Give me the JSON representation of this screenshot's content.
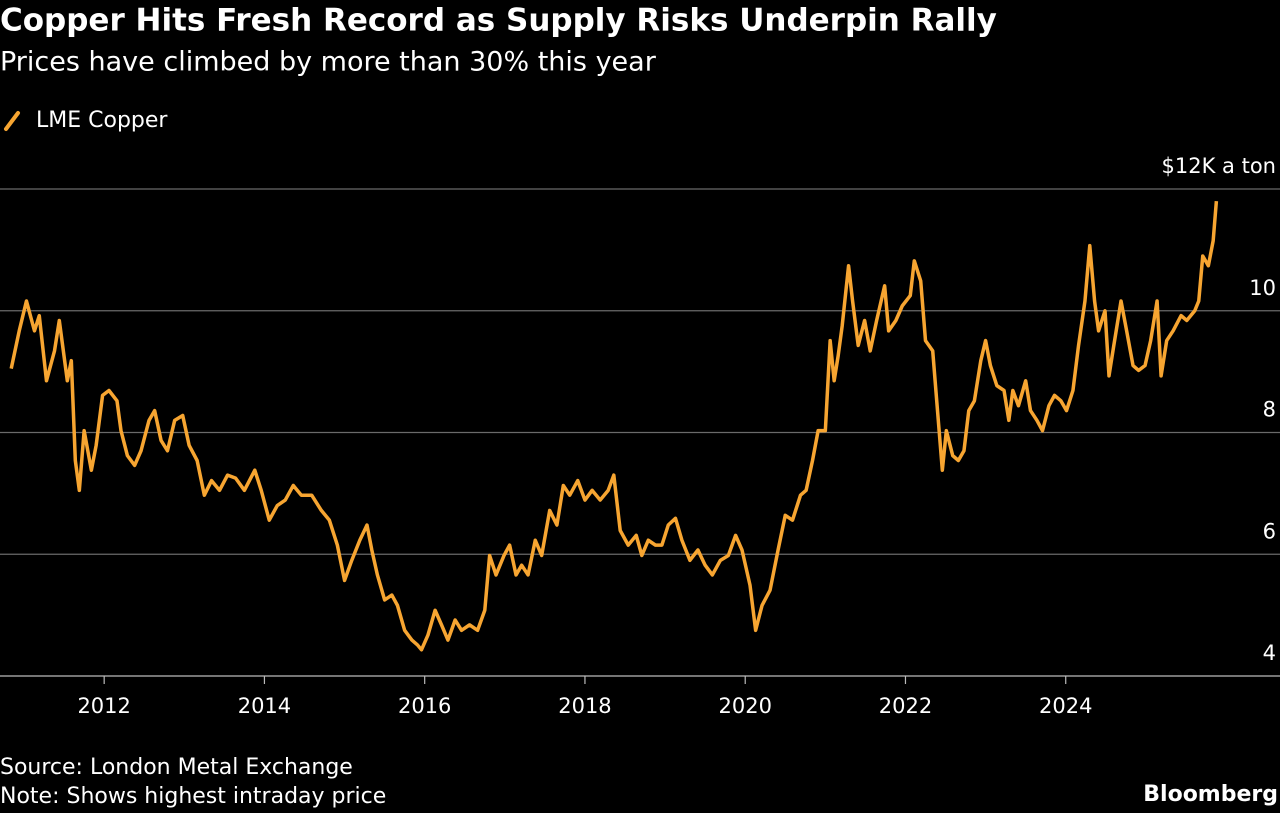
{
  "chart_data": {
    "type": "line",
    "title": "Copper Hits Fresh Record as Supply Risks Underpin Rally",
    "subtitle": "Prices have climbed by more than 30% this year",
    "source": "Source: London Metal Exchange",
    "note": "Note: Shows highest intraday price",
    "credit": "Bloomberg",
    "xlim": [
      2010.7,
      2026.05
    ],
    "xticks": [
      2012,
      2014,
      2016,
      2018,
      2020,
      2022,
      2024
    ],
    "ylim": [
      4,
      12
    ],
    "yticks": [
      4,
      6,
      8,
      10,
      {
        "value": 12,
        "label": "$12K a ton"
      }
    ],
    "grid": true,
    "legend": "top-left",
    "x": [
      2010.84,
      2010.94,
      2011.03,
      2011.13,
      2011.19,
      2011.28,
      2011.38,
      2011.44,
      2011.54,
      2011.59,
      2011.64,
      2011.69,
      2011.75,
      2011.84,
      2011.9,
      2011.98,
      2012.06,
      2012.16,
      2012.21,
      2012.29,
      2012.38,
      2012.46,
      2012.56,
      2012.63,
      2012.71,
      2012.79,
      2012.88,
      2012.98,
      2013.06,
      2013.16,
      2013.25,
      2013.34,
      2013.44,
      2013.54,
      2013.64,
      2013.75,
      2013.88,
      2013.96,
      2014.06,
      2014.16,
      2014.26,
      2014.36,
      2014.46,
      2014.59,
      2014.71,
      2014.81,
      2014.91,
      2015.0,
      2015.09,
      2015.19,
      2015.28,
      2015.34,
      2015.41,
      2015.5,
      2015.59,
      2015.66,
      2015.75,
      2015.84,
      2015.91,
      2015.96,
      2016.04,
      2016.13,
      2016.21,
      2016.29,
      2016.38,
      2016.46,
      2016.56,
      2016.66,
      2016.75,
      2016.81,
      2016.89,
      2016.99,
      2017.06,
      2017.14,
      2017.21,
      2017.29,
      2017.38,
      2017.46,
      2017.56,
      2017.65,
      2017.73,
      2017.81,
      2017.91,
      2018.0,
      2018.09,
      2018.19,
      2018.29,
      2018.36,
      2018.44,
      2018.54,
      2018.64,
      2018.71,
      2018.79,
      2018.88,
      2018.96,
      2019.04,
      2019.13,
      2019.21,
      2019.31,
      2019.41,
      2019.5,
      2019.59,
      2019.69,
      2019.79,
      2019.88,
      2019.96,
      2020.06,
      2020.13,
      2020.21,
      2020.31,
      2020.41,
      2020.5,
      2020.59,
      2020.69,
      2020.76,
      2020.84,
      2020.91,
      2021.0,
      2021.06,
      2021.11,
      2021.16,
      2021.21,
      2021.29,
      2021.34,
      2021.41,
      2021.49,
      2021.56,
      2021.64,
      2021.74,
      2021.79,
      2021.88,
      2021.96,
      2022.06,
      2022.11,
      2022.19,
      2022.25,
      2022.34,
      2022.39,
      2022.46,
      2022.51,
      2022.59,
      2022.66,
      2022.73,
      2022.79,
      2022.86,
      2022.94,
      2023.0,
      2023.06,
      2023.14,
      2023.23,
      2023.29,
      2023.34,
      2023.41,
      2023.5,
      2023.56,
      2023.64,
      2023.71,
      2023.79,
      2023.86,
      2023.94,
      2024.01,
      2024.09,
      2024.16,
      2024.24,
      2024.3,
      2024.36,
      2024.41,
      2024.49,
      2024.54,
      2024.6,
      2024.69,
      2024.76,
      2024.84,
      2024.91,
      2024.99,
      2025.06,
      2025.14,
      2025.19,
      2025.26,
      2025.34,
      2025.44,
      2025.51,
      2025.61,
      2025.66,
      2025.71,
      2025.78,
      2025.84,
      2025.88
    ],
    "series": [
      {
        "name": "LME Copper",
        "color": "#f7a531",
        "values": [
          9.05,
          9.67,
          10.16,
          9.67,
          9.92,
          8.85,
          9.34,
          9.84,
          8.85,
          9.18,
          7.54,
          7.05,
          8.03,
          7.38,
          7.79,
          8.61,
          8.69,
          8.52,
          8.03,
          7.62,
          7.46,
          7.7,
          8.2,
          8.36,
          7.87,
          7.7,
          8.2,
          8.28,
          7.79,
          7.54,
          6.97,
          7.21,
          7.05,
          7.3,
          7.25,
          7.05,
          7.38,
          7.05,
          6.56,
          6.8,
          6.89,
          7.13,
          6.97,
          6.97,
          6.72,
          6.56,
          6.15,
          5.57,
          5.9,
          6.23,
          6.48,
          6.07,
          5.66,
          5.25,
          5.33,
          5.16,
          4.75,
          4.59,
          4.51,
          4.43,
          4.67,
          5.08,
          4.84,
          4.59,
          4.92,
          4.75,
          4.84,
          4.75,
          5.08,
          5.98,
          5.66,
          5.98,
          6.15,
          5.66,
          5.82,
          5.66,
          6.23,
          5.98,
          6.72,
          6.48,
          7.13,
          6.97,
          7.21,
          6.89,
          7.05,
          6.89,
          7.05,
          7.3,
          6.39,
          6.15,
          6.31,
          5.98,
          6.23,
          6.15,
          6.15,
          6.48,
          6.59,
          6.23,
          5.9,
          6.07,
          5.82,
          5.66,
          5.9,
          5.98,
          6.31,
          6.07,
          5.49,
          4.75,
          5.16,
          5.41,
          6.07,
          6.64,
          6.56,
          6.97,
          7.05,
          7.54,
          8.03,
          8.03,
          9.51,
          8.85,
          9.26,
          9.75,
          10.74,
          10.16,
          9.43,
          9.84,
          9.34,
          9.84,
          10.41,
          9.67,
          9.84,
          10.08,
          10.25,
          10.82,
          10.49,
          9.51,
          9.34,
          8.52,
          7.38,
          8.03,
          7.62,
          7.54,
          7.7,
          8.36,
          8.52,
          9.18,
          9.51,
          9.1,
          8.77,
          8.69,
          8.2,
          8.69,
          8.44,
          8.85,
          8.36,
          8.2,
          8.03,
          8.44,
          8.61,
          8.52,
          8.36,
          8.69,
          9.43,
          10.16,
          11.07,
          10.16,
          9.67,
          10.0,
          8.93,
          9.43,
          10.16,
          9.67,
          9.1,
          9.02,
          9.1,
          9.51,
          10.16,
          8.93,
          9.51,
          9.67,
          9.92,
          9.84,
          10.0,
          10.16,
          10.9,
          10.74,
          11.15,
          11.8
        ]
      }
    ]
  }
}
